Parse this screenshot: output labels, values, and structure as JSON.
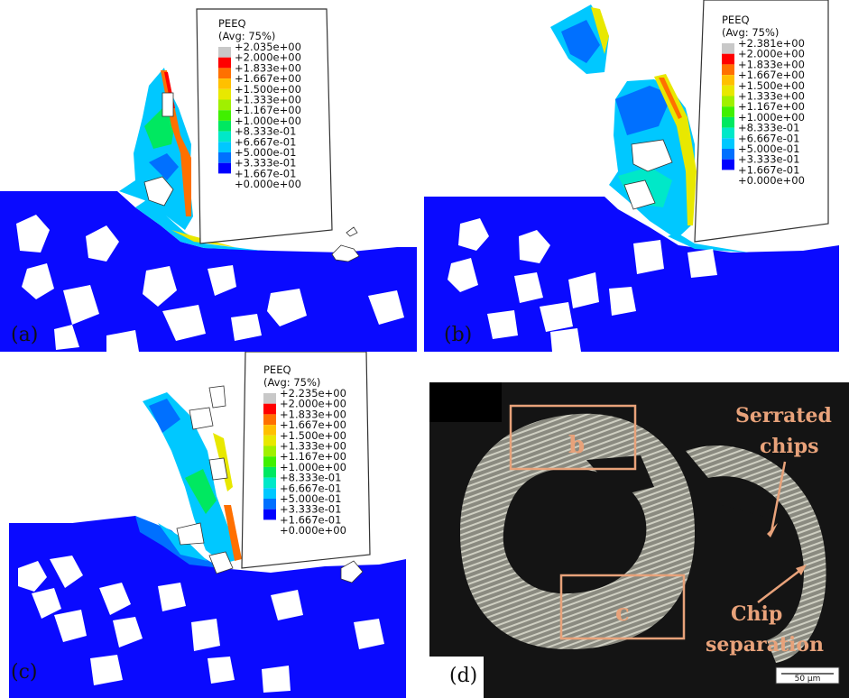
{
  "colors": {
    "matrix": "#0a0aff",
    "particle": "#ffffff",
    "tool_fill": "#ffffff",
    "tool_stroke": "#333333",
    "photo_bg": "#141414",
    "annotation": "#e8a27a",
    "contour": [
      "#0000ff",
      "#0070ff",
      "#00c8ff",
      "#00e8c8",
      "#00e860",
      "#40f000",
      "#a0f000",
      "#e8e800",
      "#ffc000",
      "#ff7000",
      "#ff0000",
      "#c8c8c8"
    ]
  },
  "panels": [
    {
      "label": "(a)",
      "legend": {
        "title": "PEEQ",
        "subtitle": "(Avg: 75%)",
        "values": [
          "+2.035e+00",
          "+2.000e+00",
          "+1.833e+00",
          "+1.667e+00",
          "+1.500e+00",
          "+1.333e+00",
          "+1.167e+00",
          "+1.000e+00",
          "+8.333e-01",
          "+6.667e-01",
          "+5.000e-01",
          "+3.333e-01",
          "+1.667e-01",
          "+0.000e+00"
        ]
      }
    },
    {
      "label": "(b)",
      "legend": {
        "title": "PEEQ",
        "subtitle": "(Avg: 75%)",
        "values": [
          "+2.381e+00",
          "+2.000e+00",
          "+1.833e+00",
          "+1.667e+00",
          "+1.500e+00",
          "+1.333e+00",
          "+1.167e+00",
          "+1.000e+00",
          "+8.333e-01",
          "+6.667e-01",
          "+5.000e-01",
          "+3.333e-01",
          "+1.667e-01",
          "+0.000e+00"
        ]
      }
    },
    {
      "label": "(c)",
      "legend": {
        "title": "PEEQ",
        "subtitle": "(Avg: 75%)",
        "values": [
          "+2.235e+00",
          "+2.000e+00",
          "+1.833e+00",
          "+1.667e+00",
          "+1.500e+00",
          "+1.333e+00",
          "+1.167e+00",
          "+1.000e+00",
          "+8.333e-01",
          "+6.667e-01",
          "+5.000e-01",
          "+3.333e-01",
          "+1.667e-01",
          "+0.000e+00"
        ]
      }
    },
    {
      "label": "(d)",
      "box_labels": [
        "b",
        "c"
      ],
      "annotations": {
        "serrated_line1": "Serrated",
        "serrated_line2": "chips",
        "chip_line1": "Chip",
        "chip_line2": "separation"
      },
      "scale_bar": "50 μm"
    }
  ]
}
